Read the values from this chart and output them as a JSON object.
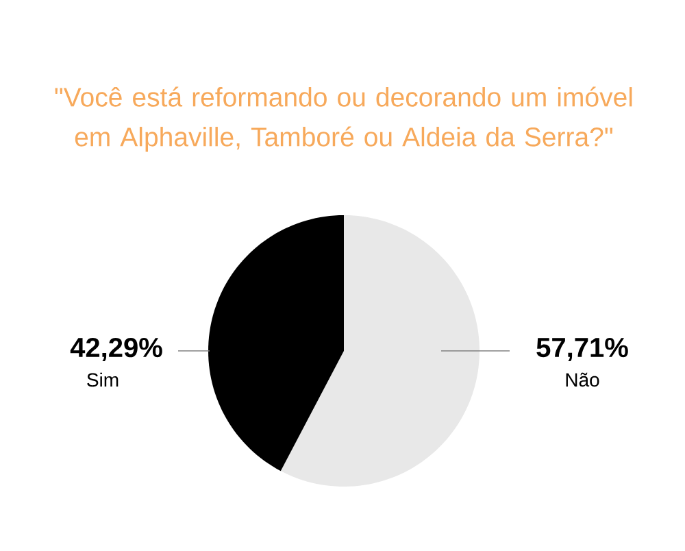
{
  "chart_data": {
    "type": "pie",
    "title": "\"Você está reformando ou decorando um imóvel em Alphaville, Tamboré ou Aldeia da Serra?\"",
    "categories": [
      "Não",
      "Sim"
    ],
    "values": [
      57.71,
      42.29
    ],
    "colors": [
      "#e8e8e8",
      "#000000"
    ],
    "value_labels": [
      "57,71%",
      "42,29%"
    ]
  }
}
